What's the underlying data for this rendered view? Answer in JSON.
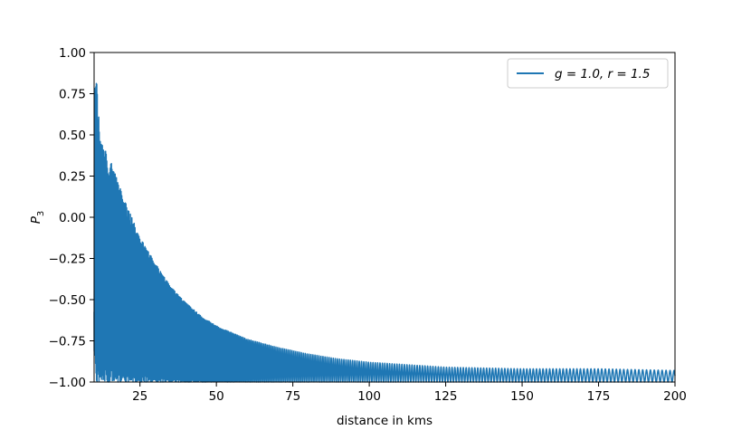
{
  "chart_data": {
    "type": "line",
    "title": "",
    "xlabel": "distance in kms",
    "ylabel": "P",
    "ylabel_subscript": "3",
    "xlim": [
      10,
      200
    ],
    "ylim": [
      -1.0,
      1.0
    ],
    "x_ticks": [
      25,
      50,
      75,
      100,
      125,
      150,
      175,
      200
    ],
    "y_ticks": [
      -1.0,
      -0.75,
      -0.5,
      -0.25,
      0.0,
      0.25,
      0.5,
      0.75,
      1.0
    ],
    "x_tick_labels": [
      "25",
      "50",
      "75",
      "100",
      "125",
      "150",
      "175",
      "200"
    ],
    "y_tick_labels": [
      "−1.00",
      "−0.75",
      "−0.50",
      "−0.25",
      "0.00",
      "0.25",
      "0.50",
      "0.75",
      "1.00"
    ],
    "grid": false,
    "legend_position": "top-right",
    "series": [
      {
        "name": "g = 1.0, r = 1.5",
        "color": "#1f77b4",
        "description": "rapidly oscillating signal; lower bound at -1.00, upper envelope decays from 1.00",
        "lower_bound": -1.0,
        "upper_envelope": {
          "x": [
            10,
            11,
            12,
            15,
            20,
            25,
            30,
            35,
            40,
            45,
            50,
            60,
            70,
            75,
            80,
            90,
            100,
            125,
            150,
            175,
            200
          ],
          "y": [
            1.0,
            0.78,
            0.46,
            0.36,
            0.1,
            -0.12,
            -0.28,
            -0.42,
            -0.52,
            -0.6,
            -0.66,
            -0.74,
            -0.79,
            -0.81,
            -0.83,
            -0.86,
            -0.88,
            -0.91,
            -0.92,
            -0.92,
            -0.93
          ]
        }
      }
    ]
  }
}
